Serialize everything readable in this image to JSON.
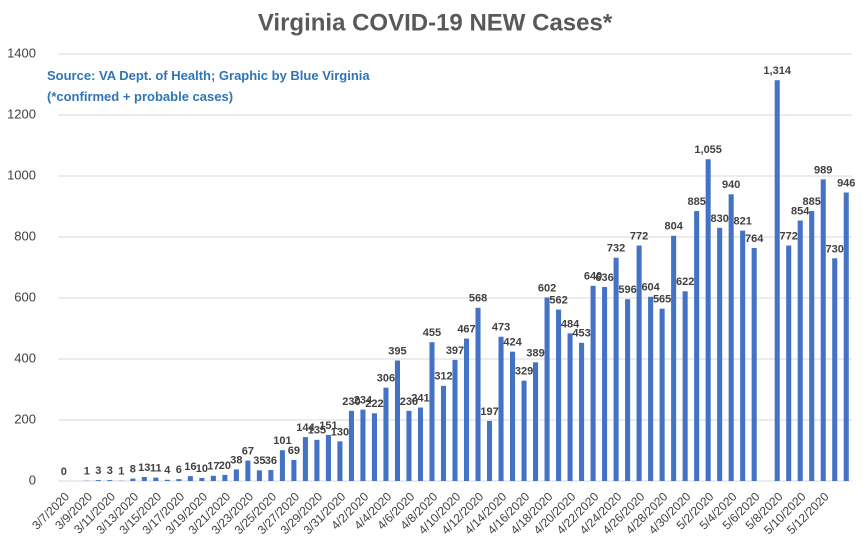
{
  "chart_data": {
    "type": "bar",
    "title": "Virginia COVID-19 NEW Cases*",
    "annotations": [
      "Source: VA Dept. of Health; Graphic by Blue Virginia",
      "(*confirmed + probable cases)"
    ],
    "categories": [
      "3/7/2020",
      null,
      "3/9/2020",
      null,
      "3/11/2020",
      null,
      "3/13/2020",
      null,
      "3/15/2020",
      null,
      "3/17/2020",
      null,
      "3/19/2020",
      null,
      "3/21/2020",
      null,
      "3/23/2020",
      null,
      "3/25/2020",
      null,
      "3/27/2020",
      null,
      "3/29/2020",
      null,
      "3/31/2020",
      null,
      "4/2/2020",
      null,
      "4/4/2020",
      null,
      "4/6/2020",
      null,
      "4/8/2020",
      null,
      "4/10/2020",
      null,
      "4/12/2020",
      null,
      "4/14/2020",
      null,
      "4/16/2020",
      null,
      "4/18/2020",
      null,
      "4/20/2020",
      null,
      "4/22/2020",
      null,
      "4/24/2020",
      null,
      "4/26/2020",
      null,
      "4/28/2020",
      null,
      "4/30/2020",
      null,
      "5/2/2020",
      null,
      "5/4/2020",
      null,
      "5/6/2020",
      null,
      "5/8/2020",
      null,
      "5/10/2020",
      null,
      "5/12/2020",
      null,
      null
    ],
    "values": [
      0,
      null,
      1,
      3,
      3,
      1,
      8,
      13,
      11,
      4,
      6,
      16,
      10,
      17,
      20,
      38,
      67,
      35,
      36,
      101,
      69,
      144,
      135,
      151,
      130,
      230,
      234,
      222,
      306,
      395,
      230,
      241,
      455,
      312,
      397,
      467,
      568,
      197,
      473,
      424,
      329,
      389,
      602,
      562,
      484,
      453,
      640,
      636,
      732,
      596,
      772,
      604,
      565,
      804,
      622,
      885,
      1055,
      830,
      940,
      821,
      764,
      null,
      1314,
      772,
      854,
      885,
      989,
      730,
      946
    ],
    "value_labels": [
      "0",
      null,
      "1",
      "3",
      "3",
      "1",
      "8",
      "13",
      "11",
      "4",
      "6",
      "16",
      "10",
      "17",
      "20",
      "38",
      "67",
      "35",
      "36",
      "101",
      "69",
      "144",
      "135",
      "151",
      "130",
      "230",
      "234",
      "222",
      "306",
      "395",
      "230",
      "241",
      "455",
      "312",
      "397",
      "467",
      "568",
      "197",
      "473",
      "424",
      "329",
      "389",
      "602",
      "562",
      "484",
      "453",
      "640",
      "636",
      "732",
      "596",
      "772",
      "604",
      "565",
      "804",
      "622",
      "885",
      "1,055",
      "830",
      "940",
      "821",
      "764",
      null,
      "1,314",
      "772",
      "854",
      "885",
      "989",
      "730",
      "946"
    ],
    "color": "#4472c4",
    "ylim": [
      0,
      1400
    ],
    "yticks": [
      0,
      200,
      400,
      600,
      800,
      1000,
      1200,
      1400
    ],
    "grid": true
  }
}
